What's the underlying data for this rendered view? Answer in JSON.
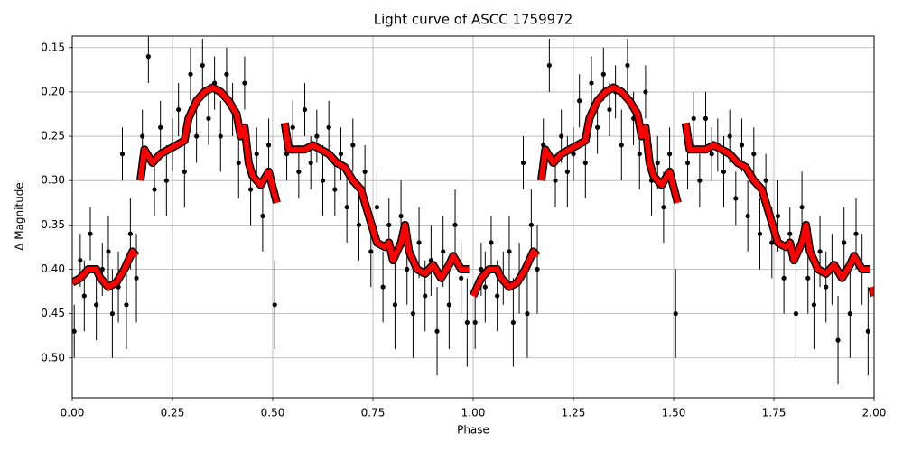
{
  "chart_data": {
    "type": "scatter",
    "title": "Light curve of ASCC 1759972",
    "x_label": "Phase",
    "y_label": "Δ Magnitude",
    "xlim": [
      0,
      2
    ],
    "ylim": [
      0.545,
      0.137
    ],
    "xticks": [
      {
        "value": 0,
        "label": "0.00"
      },
      0.25,
      {
        "value": 0.5,
        "label": "0.50"
      },
      0.75,
      {
        "value": 1,
        "label": "1.00"
      },
      1.25,
      {
        "value": 1.5,
        "label": "1.50"
      },
      1.75,
      {
        "value": 2,
        "label": "2.00"
      }
    ],
    "yticks": [
      0.15,
      {
        "value": 0.2,
        "label": "0.20"
      },
      0.25,
      {
        "value": 0.3,
        "label": "0.30"
      },
      0.35,
      {
        "value": 0.4,
        "label": "0.40"
      },
      0.45,
      {
        "value": 0.5,
        "label": "0.50"
      }
    ],
    "grid": true,
    "points": {
      "color": "#000000",
      "x": [
        0.005,
        0.02,
        0.03,
        0.045,
        0.06,
        0.075,
        0.09,
        0.1,
        0.115,
        0.125,
        0.135,
        0.145,
        0.16,
        0.175,
        0.19,
        0.205,
        0.22,
        0.235,
        0.25,
        0.265,
        0.28,
        0.295,
        0.31,
        0.325,
        0.34,
        0.355,
        0.37,
        0.385,
        0.4,
        0.415,
        0.43,
        0.445,
        0.46,
        0.475,
        0.49,
        0.505,
        0.535,
        0.55,
        0.565,
        0.58,
        0.595,
        0.61,
        0.625,
        0.64,
        0.655,
        0.67,
        0.685,
        0.7,
        0.715,
        0.73,
        0.745,
        0.76,
        0.775,
        0.79,
        0.805,
        0.82,
        0.835,
        0.85,
        0.865,
        0.88,
        0.895,
        0.91,
        0.925,
        0.94,
        0.955,
        0.97,
        0.985,
        1.005,
        1.02,
        1.03,
        1.045,
        1.06,
        1.075,
        1.09,
        1.1,
        1.115,
        1.125,
        1.135,
        1.145,
        1.16,
        1.175,
        1.19,
        1.205,
        1.22,
        1.235,
        1.25,
        1.265,
        1.28,
        1.295,
        1.31,
        1.325,
        1.34,
        1.355,
        1.37,
        1.385,
        1.4,
        1.415,
        1.43,
        1.445,
        1.46,
        1.475,
        1.49,
        1.505,
        1.535,
        1.55,
        1.565,
        1.58,
        1.595,
        1.61,
        1.625,
        1.64,
        1.655,
        1.67,
        1.685,
        1.7,
        1.715,
        1.73,
        1.745,
        1.76,
        1.775,
        1.79,
        1.805,
        1.82,
        1.835,
        1.85,
        1.865,
        1.88,
        1.895,
        1.91,
        1.925,
        1.94,
        1.955,
        1.97,
        1.985
      ],
      "y": [
        0.47,
        0.39,
        0.43,
        0.36,
        0.44,
        0.4,
        0.38,
        0.45,
        0.42,
        0.27,
        0.44,
        0.36,
        0.41,
        0.25,
        0.16,
        0.31,
        0.24,
        0.3,
        0.26,
        0.22,
        0.29,
        0.18,
        0.25,
        0.17,
        0.23,
        0.19,
        0.25,
        0.18,
        0.22,
        0.28,
        0.19,
        0.31,
        0.27,
        0.34,
        0.26,
        0.44,
        0.27,
        0.24,
        0.29,
        0.22,
        0.28,
        0.25,
        0.3,
        0.24,
        0.31,
        0.27,
        0.33,
        0.26,
        0.35,
        0.29,
        0.38,
        0.33,
        0.42,
        0.35,
        0.44,
        0.34,
        0.4,
        0.45,
        0.37,
        0.43,
        0.39,
        0.47,
        0.38,
        0.44,
        0.35,
        0.41,
        0.46,
        0.46,
        0.4,
        0.42,
        0.37,
        0.43,
        0.41,
        0.38,
        0.46,
        0.41,
        0.28,
        0.45,
        0.35,
        0.4,
        0.26,
        0.17,
        0.3,
        0.25,
        0.29,
        0.27,
        0.21,
        0.28,
        0.19,
        0.24,
        0.18,
        0.22,
        0.2,
        0.26,
        0.17,
        0.23,
        0.27,
        0.2,
        0.3,
        0.28,
        0.33,
        0.27,
        0.45,
        0.28,
        0.23,
        0.3,
        0.23,
        0.27,
        0.26,
        0.29,
        0.25,
        0.32,
        0.26,
        0.34,
        0.27,
        0.36,
        0.3,
        0.37,
        0.34,
        0.41,
        0.36,
        0.45,
        0.33,
        0.41,
        0.44,
        0.38,
        0.42,
        0.4,
        0.48,
        0.37,
        0.45,
        0.36,
        0.4,
        0.47
      ],
      "yerr": [
        0.03,
        0.03,
        0.04,
        0.03,
        0.04,
        0.03,
        0.04,
        0.05,
        0.04,
        0.03,
        0.05,
        0.04,
        0.05,
        0.03,
        0.03,
        0.03,
        0.03,
        0.04,
        0.03,
        0.03,
        0.04,
        0.03,
        0.03,
        0.03,
        0.03,
        0.03,
        0.04,
        0.03,
        0.03,
        0.04,
        0.03,
        0.04,
        0.03,
        0.04,
        0.03,
        0.05,
        0.03,
        0.03,
        0.03,
        0.03,
        0.03,
        0.03,
        0.04,
        0.03,
        0.03,
        0.03,
        0.04,
        0.03,
        0.04,
        0.03,
        0.04,
        0.04,
        0.04,
        0.03,
        0.05,
        0.04,
        0.04,
        0.05,
        0.04,
        0.04,
        0.04,
        0.05,
        0.04,
        0.05,
        0.04,
        0.04,
        0.05,
        0.03,
        0.03,
        0.04,
        0.03,
        0.04,
        0.03,
        0.04,
        0.05,
        0.04,
        0.03,
        0.05,
        0.04,
        0.05,
        0.03,
        0.03,
        0.03,
        0.03,
        0.04,
        0.03,
        0.03,
        0.04,
        0.03,
        0.03,
        0.03,
        0.03,
        0.03,
        0.04,
        0.03,
        0.03,
        0.04,
        0.03,
        0.04,
        0.03,
        0.04,
        0.03,
        0.05,
        0.03,
        0.03,
        0.03,
        0.03,
        0.03,
        0.03,
        0.04,
        0.03,
        0.03,
        0.03,
        0.04,
        0.03,
        0.04,
        0.03,
        0.04,
        0.04,
        0.04,
        0.03,
        0.05,
        0.04,
        0.04,
        0.05,
        0.04,
        0.04,
        0.04,
        0.05,
        0.04,
        0.05,
        0.04,
        0.04,
        0.05
      ]
    },
    "curve": {
      "color": "#ff0000",
      "x": [
        0,
        0.02,
        0.04,
        0.06,
        0.07,
        0.09,
        0.11,
        0.13,
        0.14,
        0.15,
        0.16,
        null,
        0.17,
        0.18,
        0.2,
        0.22,
        0.24,
        0.26,
        0.28,
        0.29,
        0.31,
        0.33,
        0.35,
        0.37,
        0.39,
        0.41,
        0.42,
        0.43,
        0.44,
        0.45,
        0.47,
        0.49,
        0.51,
        null,
        0.53,
        0.54,
        0.56,
        0.58,
        0.6,
        0.62,
        0.64,
        0.66,
        0.68,
        0.7,
        0.72,
        0.74,
        0.76,
        0.78,
        0.79,
        0.8,
        0.82,
        0.83,
        0.84,
        0.86,
        0.88,
        0.9,
        0.92,
        0.94,
        0.95,
        0.97,
        0.99,
        null,
        1,
        1.02,
        1.04,
        1.06,
        1.07,
        1.09,
        1.11,
        1.13,
        1.14,
        1.15,
        1.16,
        null,
        1.17,
        1.18,
        1.2,
        1.22,
        1.24,
        1.26,
        1.28,
        1.29,
        1.31,
        1.33,
        1.35,
        1.37,
        1.39,
        1.41,
        1.42,
        1.43,
        1.44,
        1.45,
        1.47,
        1.49,
        1.51,
        null,
        1.53,
        1.54,
        1.56,
        1.58,
        1.6,
        1.62,
        1.64,
        1.66,
        1.68,
        1.7,
        1.72,
        1.74,
        1.76,
        1.78,
        1.79,
        1.8,
        1.82,
        1.83,
        1.84,
        1.86,
        1.88,
        1.9,
        1.92,
        1.94,
        1.95,
        1.97,
        1.99,
        null,
        1.995,
        2
      ],
      "y": [
        0.415,
        0.41,
        0.4,
        0.4,
        0.41,
        0.42,
        0.415,
        0.4,
        0.39,
        0.38,
        0.385,
        null,
        0.3,
        0.265,
        0.28,
        0.27,
        0.265,
        0.26,
        0.255,
        0.23,
        0.21,
        0.2,
        0.195,
        0.2,
        0.21,
        0.225,
        0.25,
        0.24,
        0.28,
        0.295,
        0.305,
        0.29,
        0.325,
        null,
        0.235,
        0.265,
        0.265,
        0.265,
        0.26,
        0.265,
        0.27,
        0.28,
        0.285,
        0.3,
        0.31,
        0.34,
        0.37,
        0.375,
        0.37,
        0.39,
        0.37,
        0.35,
        0.38,
        0.4,
        0.405,
        0.395,
        0.41,
        0.395,
        0.385,
        0.4,
        0.4,
        null,
        0.43,
        0.41,
        0.4,
        0.4,
        0.41,
        0.42,
        0.415,
        0.4,
        0.39,
        0.38,
        0.385,
        null,
        0.3,
        0.265,
        0.28,
        0.27,
        0.265,
        0.26,
        0.255,
        0.23,
        0.21,
        0.2,
        0.195,
        0.2,
        0.21,
        0.225,
        0.25,
        0.24,
        0.28,
        0.295,
        0.305,
        0.29,
        0.325,
        null,
        0.235,
        0.265,
        0.265,
        0.265,
        0.26,
        0.265,
        0.27,
        0.28,
        0.285,
        0.3,
        0.31,
        0.34,
        0.37,
        0.375,
        0.37,
        0.39,
        0.37,
        0.35,
        0.38,
        0.4,
        0.405,
        0.395,
        0.41,
        0.395,
        0.385,
        0.4,
        0.4,
        null,
        0.42,
        0.43
      ]
    }
  }
}
